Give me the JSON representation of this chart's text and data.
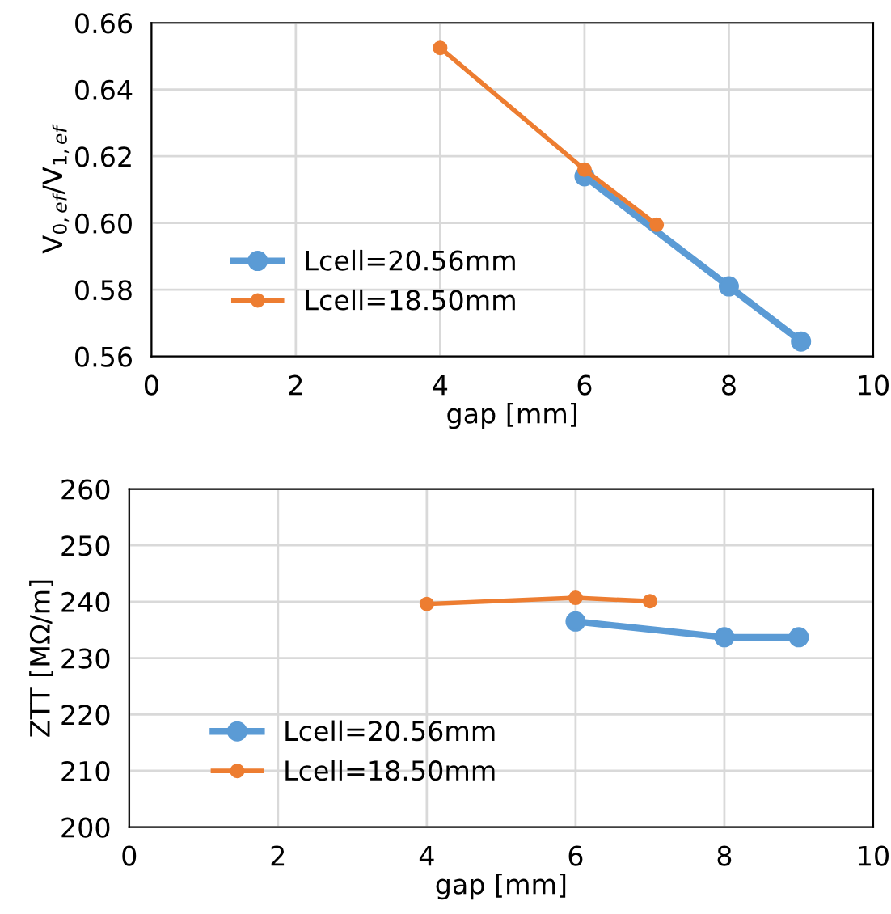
{
  "chart_data": [
    {
      "type": "line",
      "xlabel": "gap [mm]",
      "ylabel": "V$_{0,ef}$/V$_{1,ef}$",
      "xlim": [
        0,
        10
      ],
      "xticks": [
        0,
        2,
        4,
        6,
        8,
        10
      ],
      "ylim": [
        0.56,
        0.66
      ],
      "yticks": [
        {
          "value": 0.56,
          "label": "0.56"
        },
        {
          "value": 0.58,
          "label": "0.58"
        },
        {
          "value": 0.6,
          "label": "0.60"
        },
        {
          "value": 0.62,
          "label": "0.62"
        },
        {
          "value": 0.64,
          "label": "0.64"
        },
        {
          "value": 0.66,
          "label": "0.66"
        }
      ],
      "grid": true,
      "legend": "bottom left",
      "marker": "circle",
      "line_style": "solid",
      "series": [
        {
          "name": "Lcell=20.56mm",
          "color": "#5b9bd5",
          "x": [
            6,
            8,
            9
          ],
          "values": [
            0.614,
            0.581,
            0.5645
          ]
        },
        {
          "name": "Lcell=18.50mm",
          "color": "#ed7d31",
          "x": [
            4,
            6,
            7
          ],
          "values": [
            0.6525,
            0.616,
            0.5995
          ]
        }
      ]
    },
    {
      "type": "line",
      "xlabel": "gap [mm]",
      "ylabel": "ZTT [MΩ/m]",
      "xlim": [
        0,
        10
      ],
      "xticks": [
        0,
        2,
        4,
        6,
        8,
        10
      ],
      "ylim": [
        200,
        260
      ],
      "yticks": [
        200,
        210,
        220,
        230,
        240,
        250,
        260
      ],
      "grid": true,
      "legend": "bottom left",
      "marker": "circle",
      "line_style": "solid",
      "series": [
        {
          "name": "Lcell=20.56mm",
          "color": "#5b9bd5",
          "x": [
            6,
            8,
            9
          ],
          "values": [
            236.5,
            233.7,
            233.7
          ]
        },
        {
          "name": "Lcell=18.50mm",
          "color": "#ed7d31",
          "x": [
            4,
            6,
            7
          ],
          "values": [
            239.6,
            240.7,
            240.1
          ]
        }
      ]
    }
  ]
}
